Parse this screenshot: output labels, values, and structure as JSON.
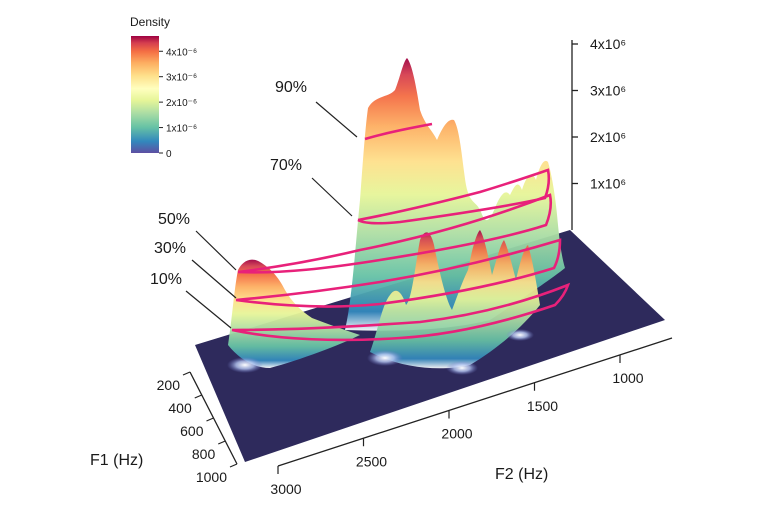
{
  "chart_data": {
    "type": "surface-3d",
    "legend": {
      "title": "Density",
      "tick_labels": [
        "4x10⁻⁶",
        "3x10⁻⁶",
        "2x10⁻⁶",
        "1x10⁻⁶",
        "0"
      ],
      "tick_values": [
        4e-06,
        3e-06,
        2e-06,
        1e-06,
        0
      ],
      "colors": [
        "#9e0142",
        "#d53e4f",
        "#f46d43",
        "#fdae61",
        "#fee08b",
        "#ffffbf",
        "#e6f598",
        "#abdda4",
        "#66c2a5",
        "#3288bd",
        "#5e4fa2"
      ],
      "placement": "top-left"
    },
    "z_axis": {
      "tick_labels": [
        "4x10⁶",
        "3x10⁶",
        "2x10⁶",
        "1x10⁶"
      ],
      "tick_values": [
        4000000,
        3000000,
        2000000,
        1000000
      ]
    },
    "x_axis": {
      "label": "F2 (Hz)",
      "tick_labels": [
        "3000",
        "2500",
        "2000",
        "1500",
        "1000"
      ],
      "tick_values": [
        3000,
        2500,
        2000,
        1500,
        1000
      ]
    },
    "y_axis": {
      "label": "F1 (Hz)",
      "tick_labels": [
        "200",
        "400",
        "600",
        "800",
        "1000"
      ],
      "tick_values": [
        200,
        400,
        600,
        800,
        1000
      ]
    },
    "contour_levels": [
      {
        "label": "90%",
        "value": 90
      },
      {
        "label": "70%",
        "value": 70
      },
      {
        "label": "50%",
        "value": 50
      },
      {
        "label": "30%",
        "value": 30
      },
      {
        "label": "10%",
        "value": 10
      }
    ],
    "contour_color": "#e8217a",
    "floor_color": "#2e2a5c"
  }
}
